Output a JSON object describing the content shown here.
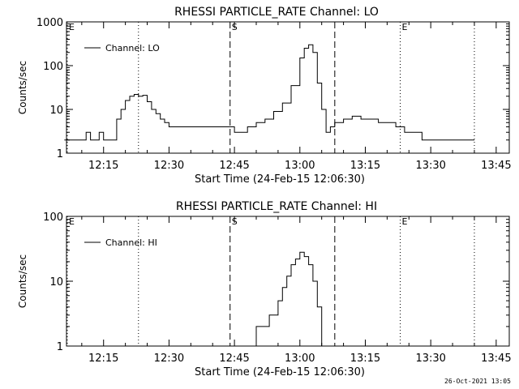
{
  "chart_data": [
    {
      "type": "line",
      "title": "RHESSI PARTICLE_RATE Channel: LO",
      "xlabel": "Start Time (24-Feb-15 12:06:30)",
      "ylabel": "Counts/sec",
      "y_scale": "log",
      "ylim": [
        1,
        1000
      ],
      "y_ticks": [
        1,
        10,
        100,
        1000
      ],
      "y_tick_labels": [
        "1",
        "10",
        "100",
        "1000"
      ],
      "x_ticks": [
        "12:15",
        "12:30",
        "12:45",
        "13:00",
        "13:15",
        "13:30",
        "13:45"
      ],
      "legend": "Channel: LO",
      "legend_position": "top-left",
      "markers": [
        {
          "time": "12:06",
          "style": "dotted",
          "label": "E"
        },
        {
          "time": "12:23",
          "style": "dotted",
          "label": ""
        },
        {
          "time": "12:44",
          "style": "dashed",
          "label": "S"
        },
        {
          "time": "13:08",
          "style": "dashed",
          "label": ""
        },
        {
          "time": "13:23",
          "style": "dotted",
          "label": "E"
        },
        {
          "time": "13:40",
          "style": "dotted",
          "label": ""
        }
      ],
      "series": [
        {
          "name": "Channel: LO",
          "x": [
            "12:06",
            "12:08",
            "12:10",
            "12:11",
            "12:12",
            "12:13",
            "12:14",
            "12:15",
            "12:16",
            "12:17",
            "12:18",
            "12:19",
            "12:20",
            "12:21",
            "12:22",
            "12:23",
            "12:24",
            "12:25",
            "12:26",
            "12:27",
            "12:28",
            "12:29",
            "12:30",
            "12:32",
            "12:34",
            "12:36",
            "12:38",
            "12:40",
            "12:42",
            "12:44",
            "12:45",
            "12:46",
            "12:48",
            "12:50",
            "12:52",
            "12:54",
            "12:56",
            "12:58",
            "13:00",
            "13:01",
            "13:02",
            "13:03",
            "13:04",
            "13:05",
            "13:06",
            "13:07",
            "13:08",
            "13:10",
            "13:12",
            "13:14",
            "13:16",
            "13:18",
            "13:20",
            "13:22",
            "13:24",
            "13:26",
            "13:28",
            "13:30",
            "13:32",
            "13:34",
            "13:36",
            "13:38",
            "13:40"
          ],
          "y": [
            2,
            2,
            2,
            3,
            2,
            2,
            3,
            2,
            2,
            2,
            6,
            10,
            16,
            20,
            22,
            20,
            21,
            15,
            10,
            8,
            6,
            5,
            4,
            4,
            4,
            4,
            4,
            4,
            4,
            4,
            3,
            3,
            4,
            5,
            6,
            9,
            14,
            35,
            150,
            250,
            300,
            200,
            40,
            10,
            3,
            4,
            5,
            6,
            7,
            6,
            6,
            5,
            5,
            4,
            3,
            3,
            2,
            2,
            2,
            2,
            2,
            2,
            2
          ]
        }
      ]
    },
    {
      "type": "line",
      "title": "RHESSI PARTICLE_RATE Channel: HI",
      "xlabel": "Start Time (24-Feb-15 12:06:30)",
      "ylabel": "Counts/sec",
      "y_scale": "log",
      "ylim": [
        1,
        100
      ],
      "y_ticks": [
        1,
        10,
        100
      ],
      "y_tick_labels": [
        "1",
        "10",
        "100"
      ],
      "x_ticks": [
        "12:15",
        "12:30",
        "12:45",
        "13:00",
        "13:15",
        "13:30",
        "13:45"
      ],
      "legend": "Channel: HI",
      "legend_position": "top-left",
      "markers": [
        {
          "time": "12:06",
          "style": "dotted",
          "label": "E"
        },
        {
          "time": "12:23",
          "style": "dotted",
          "label": ""
        },
        {
          "time": "12:44",
          "style": "dashed",
          "label": "S"
        },
        {
          "time": "13:08",
          "style": "dashed",
          "label": ""
        },
        {
          "time": "13:23",
          "style": "dotted",
          "label": "E"
        },
        {
          "time": "13:40",
          "style": "dotted",
          "label": ""
        }
      ],
      "series": [
        {
          "name": "Channel: HI",
          "x": [
            "12:49",
            "12:50",
            "12:51",
            "12:52",
            "12:53",
            "12:54",
            "12:55",
            "12:56",
            "12:57",
            "12:58",
            "12:59",
            "13:00",
            "13:01",
            "13:02",
            "13:03",
            "13:04",
            "13:05"
          ],
          "y": [
            1,
            2,
            2,
            2,
            3,
            3,
            5,
            8,
            12,
            18,
            22,
            28,
            24,
            18,
            10,
            4,
            1
          ]
        }
      ]
    }
  ],
  "timestamp": "26-Oct-2021 13:05"
}
